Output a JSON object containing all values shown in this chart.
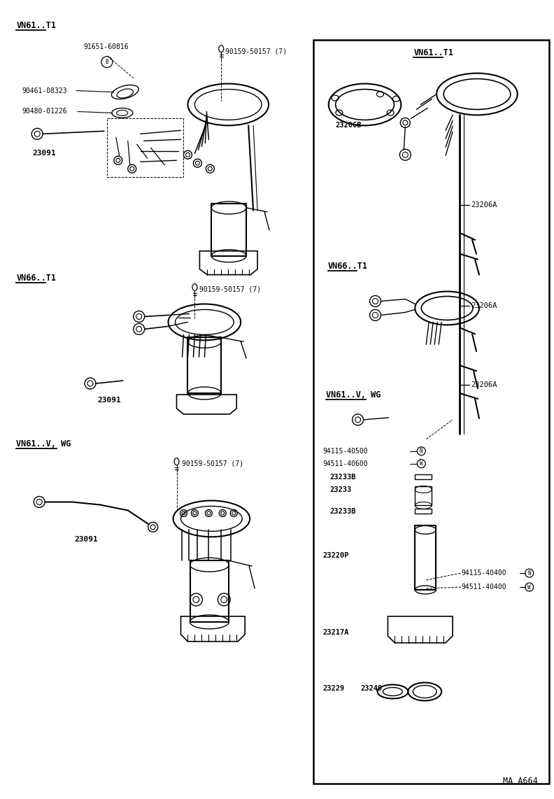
{
  "bg_color": "#ffffff",
  "line_color": "#000000",
  "fig_width": 7.92,
  "fig_height": 11.42,
  "dpi": 100,
  "labels": {
    "part_91651": "91651-60816",
    "part_90159_1": "90159-50157 (7)",
    "part_90159_2": "90159-50157 (7)",
    "part_90159_3": "90159-50157 (7)",
    "part_90461": "90461-08323",
    "part_90480": "90480-01226",
    "part_23091_1": "23091",
    "part_23091_2": "23091",
    "part_23091_3": "23091",
    "part_23206B": "23206B",
    "part_23206A_1": "23206A",
    "part_23206A_2": "23206A",
    "part_23206A_3": "23206A",
    "part_94115_40500": "94115-40500",
    "part_94511_40600": "94511-40600",
    "part_23233B_1": "23233B",
    "part_23233": "23233",
    "part_23233B_2": "23233B",
    "part_23220P": "23220P",
    "part_94115_40400": "94115-40400",
    "part_94511_40400": "94511-40400",
    "part_23217A": "23217A",
    "part_23229": "23229",
    "part_23249": "23249",
    "footer": "MA A664",
    "header_vn61t1_left": "VN61..T1",
    "header_vn66t1_left": "VN66..T1",
    "header_vn61vwg_left": "VN61..V, WG",
    "header_vn61t1_right": "VN61..T1",
    "header_vn66t1_right": "VN66..T1",
    "header_vn61vwg_right": "VN61..V, WG"
  }
}
